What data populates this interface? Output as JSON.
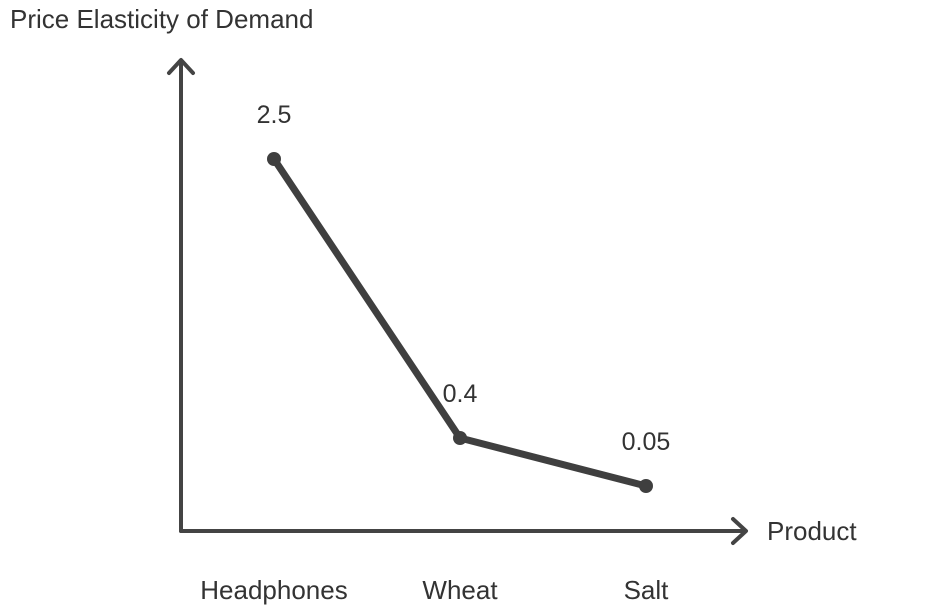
{
  "chart_data": {
    "type": "line",
    "title": "",
    "ylabel": "Price Elasticity of Demand",
    "xlabel": "Product",
    "categories": [
      "Headphones",
      "Wheat",
      "Salt"
    ],
    "values": [
      2.5,
      0.4,
      0.05
    ],
    "data_labels": [
      "2.5",
      "0.4",
      "0.05"
    ],
    "grid": false,
    "legend": "none",
    "colors": {
      "line": "#3f3f3f",
      "axis": "#444444",
      "text": "#333333"
    }
  }
}
